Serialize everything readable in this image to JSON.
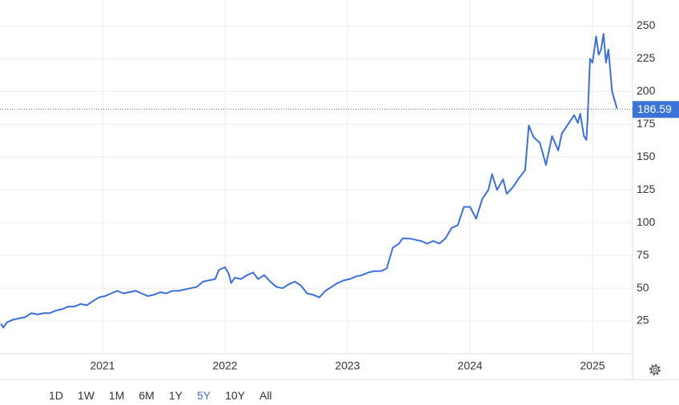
{
  "chart_data": {
    "type": "line",
    "color": "#3a6fe0",
    "x": [
      2020.17,
      2020.19,
      2020.22,
      2020.27,
      2020.32,
      2020.37,
      2020.42,
      2020.47,
      2020.52,
      2020.57,
      2020.62,
      2020.67,
      2020.72,
      2020.77,
      2020.82,
      2020.87,
      2020.92,
      2020.97,
      2021.02,
      2021.07,
      2021.12,
      2021.17,
      2021.22,
      2021.27,
      2021.32,
      2021.37,
      2021.42,
      2021.47,
      2021.52,
      2021.57,
      2021.62,
      2021.67,
      2021.72,
      2021.77,
      2021.82,
      2021.87,
      2021.92,
      2021.95,
      2022.0,
      2022.03,
      2022.05,
      2022.08,
      2022.13,
      2022.18,
      2022.23,
      2022.27,
      2022.32,
      2022.37,
      2022.42,
      2022.47,
      2022.52,
      2022.57,
      2022.62,
      2022.67,
      2022.72,
      2022.77,
      2022.82,
      2022.87,
      2022.92,
      2022.97,
      2023.02,
      2023.07,
      2023.12,
      2023.17,
      2023.22,
      2023.27,
      2023.32,
      2023.37,
      2023.42,
      2023.45,
      2023.5,
      2023.55,
      2023.6,
      2023.65,
      2023.7,
      2023.75,
      2023.8,
      2023.85,
      2023.9,
      2023.95,
      2024.0,
      2024.05,
      2024.1,
      2024.15,
      2024.18,
      2024.22,
      2024.27,
      2024.3,
      2024.35,
      2024.4,
      2024.45,
      2024.48,
      2024.52,
      2024.57,
      2024.62,
      2024.67,
      2024.72,
      2024.75,
      2024.8,
      2024.85,
      2024.88,
      2024.9,
      2024.93,
      2024.95,
      2024.96,
      2024.98,
      2025.0,
      2025.03,
      2025.05,
      2025.07,
      2025.09,
      2025.11,
      2025.13,
      2025.16,
      2025.2
    ],
    "values": [
      23,
      20,
      24,
      26,
      27,
      28,
      31,
      30,
      31,
      31,
      33,
      34,
      36,
      36,
      38,
      37,
      40,
      43,
      44,
      46,
      48,
      46,
      47,
      48,
      46,
      44,
      45,
      47,
      46,
      48,
      48,
      49,
      50,
      51,
      55,
      56,
      57,
      64,
      66,
      61,
      54,
      58,
      57,
      60,
      62,
      57,
      60,
      55,
      51,
      50,
      53,
      55,
      52,
      46,
      45,
      43,
      48,
      51,
      54,
      56,
      57,
      59,
      60,
      62,
      63,
      63,
      65,
      81,
      84,
      88,
      88,
      87,
      86,
      84,
      86,
      84,
      88,
      96,
      98,
      112,
      112,
      103,
      118,
      125,
      137,
      125,
      133,
      122,
      127,
      134,
      140,
      174,
      165,
      161,
      144,
      166,
      155,
      168,
      175,
      182,
      176,
      183,
      166,
      163,
      179,
      225,
      222,
      242,
      228,
      232,
      244,
      222,
      232,
      200,
      187
    ],
    "xlim": [
      2020.163,
      2025.327
    ],
    "xticks": [
      2021,
      2022,
      2023,
      2024,
      2025
    ],
    "ylim": [
      0,
      260
    ],
    "yticks": [
      25,
      50,
      75,
      100,
      125,
      150,
      175,
      200,
      225,
      250
    ],
    "last_price": 186.59,
    "grid": true
  },
  "range_buttons": [
    "1D",
    "1W",
    "1M",
    "6M",
    "1Y",
    "5Y",
    "10Y",
    "All"
  ],
  "selected_range_index": 5
}
